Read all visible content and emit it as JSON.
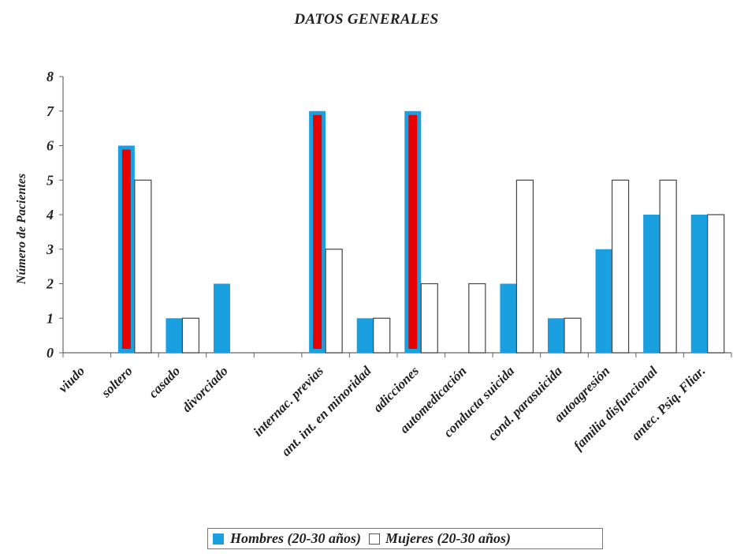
{
  "chart_data": {
    "type": "bar",
    "title": "DATOS GENERALES",
    "ylabel": "Número de Pacientes",
    "xlabel": "",
    "ylim": [
      0,
      8
    ],
    "yticks": [
      0,
      1,
      2,
      3,
      4,
      5,
      6,
      7,
      8
    ],
    "grid": false,
    "legend_position": "bottom",
    "categories": [
      "viudo",
      "soltero",
      "casado",
      "divorciado",
      "",
      "internac. previas",
      "ant. int. en minoridad",
      "adicciones",
      "automedicación",
      "conducta suicida",
      "cond. parasuicida",
      "autoagresión",
      "familia disfuncional",
      "antec. Psiq. Fliar."
    ],
    "series": [
      {
        "name": "Hombres (20-30 años)",
        "color": "#1aa0e0",
        "values": [
          0,
          6,
          1,
          2,
          null,
          7,
          1,
          7,
          0,
          2,
          1,
          3,
          4,
          4
        ]
      },
      {
        "name": "Mujeres (20-30 años)",
        "color": "#ffffff",
        "values": [
          0,
          5,
          1,
          0,
          null,
          3,
          1,
          2,
          2,
          5,
          1,
          5,
          5,
          4
        ]
      }
    ],
    "highlight_color": "#e60000",
    "highlighted_bars": [
      "soltero",
      "internac. previas",
      "adicciones"
    ]
  }
}
